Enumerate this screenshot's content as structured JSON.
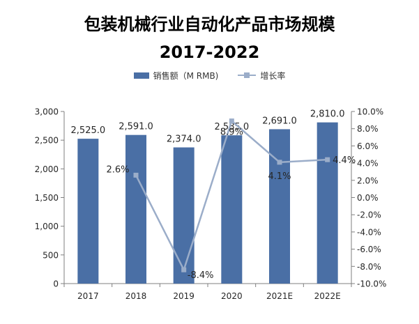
{
  "chart_data": {
    "type": "bar",
    "title_line1": "包装机械行业自动化产品市场规模",
    "title_line2": "2017-2022",
    "categories": [
      "2017",
      "2018",
      "2019",
      "2020",
      "2021E",
      "2022E"
    ],
    "series": [
      {
        "name": "销售额（M RMB)",
        "type": "bar",
        "axis": "left",
        "values": [
          2525.0,
          2591.0,
          2374.0,
          2585.0,
          2691.0,
          2810.0
        ],
        "labels": [
          "2,525.0",
          "2,591.0",
          "2,374.0",
          "2,585.0",
          "2,691.0",
          "2,810.0"
        ],
        "color": "#4a6fa5"
      },
      {
        "name": "增长率",
        "type": "line",
        "axis": "right",
        "x": [
          "2018",
          "2019",
          "2020",
          "2021E",
          "2022E"
        ],
        "values": [
          2.6,
          -8.4,
          8.9,
          4.1,
          4.4
        ],
        "labels": [
          "2.6%",
          "-8.4%",
          "8.9%",
          "4.1%",
          "4.4%"
        ],
        "color": "#9badc9"
      }
    ],
    "y_left": {
      "range": [
        0,
        3000
      ],
      "ticks": [
        0,
        500,
        1000,
        1500,
        2000,
        2500,
        3000
      ],
      "tick_labels": [
        "0",
        "500",
        "1,000",
        "1,500",
        "2,000",
        "2,500",
        "3,000"
      ]
    },
    "y_right": {
      "range": [
        -10,
        10
      ],
      "ticks": [
        -10,
        -8,
        -6,
        -4,
        -2,
        0,
        2,
        4,
        6,
        8,
        10
      ],
      "tick_labels": [
        "-10.0%",
        "-8.0%",
        "-6.0%",
        "-4.0%",
        "-2.0%",
        "0.0%",
        "2.0%",
        "4.0%",
        "6.0%",
        "8.0%",
        "10.0%"
      ]
    },
    "grid": false,
    "legend_placement": "top-center"
  }
}
